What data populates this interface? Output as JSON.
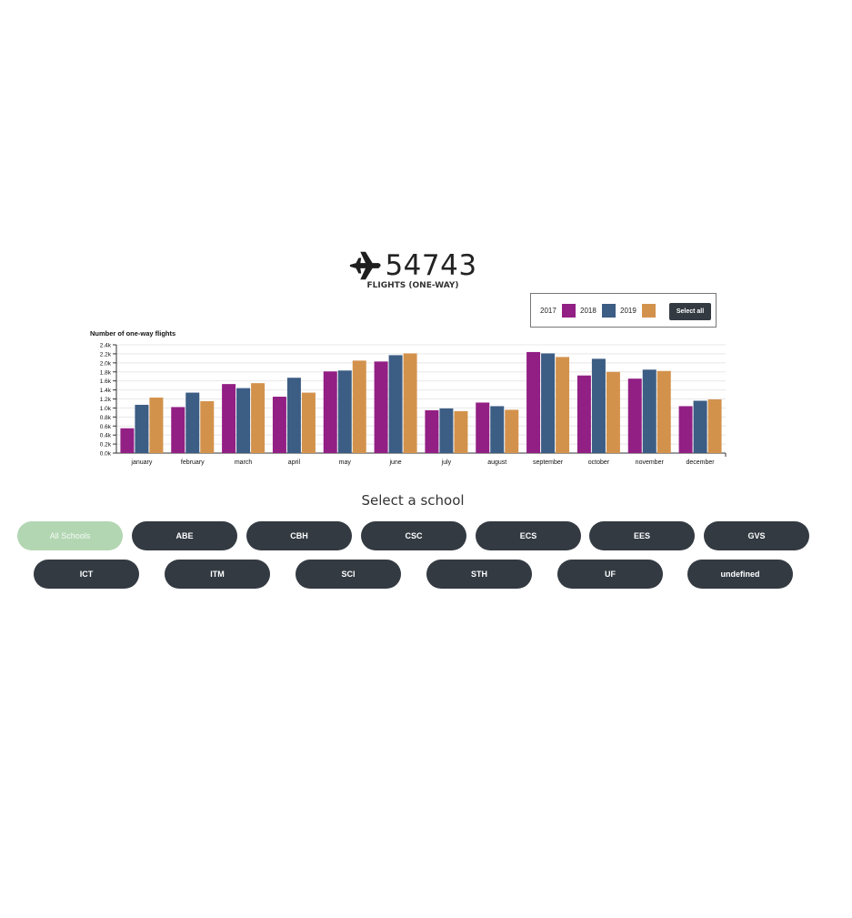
{
  "kpi": {
    "icon": "airplane-icon",
    "value": "54743",
    "label": "FLIGHTS (ONE-WAY)"
  },
  "legend": {
    "items": [
      {
        "label": "2017",
        "color": "#921f84"
      },
      {
        "label": "2018",
        "color": "#3c5d84"
      },
      {
        "label": "2019",
        "color": "#d3924c"
      }
    ],
    "select_all_label": "Select all"
  },
  "chart_data": {
    "type": "bar",
    "title": "Number of one-way flights",
    "xlabel": "",
    "ylabel": "Number of one-way flights",
    "ylim": [
      0,
      2400
    ],
    "grid": true,
    "y_ticks": [
      "0.0k",
      "0.2k",
      "0.4k",
      "0.6k",
      "0.8k",
      "1.0k",
      "1.2k",
      "1.4k",
      "1.6k",
      "1.8k",
      "2.0k",
      "2.2k",
      "2.4k"
    ],
    "categories": [
      "january",
      "february",
      "march",
      "april",
      "may",
      "june",
      "july",
      "august",
      "september",
      "october",
      "november",
      "december"
    ],
    "series": [
      {
        "name": "2017",
        "color": "#921f84",
        "values": [
          550,
          1020,
          1530,
          1250,
          1810,
          2030,
          950,
          1120,
          2240,
          1720,
          1650,
          1040
        ]
      },
      {
        "name": "2018",
        "color": "#3c5d84",
        "values": [
          1070,
          1340,
          1440,
          1670,
          1830,
          2170,
          990,
          1040,
          2210,
          2090,
          1850,
          1160
        ]
      },
      {
        "name": "2019",
        "color": "#d3924c",
        "values": [
          1230,
          1150,
          1550,
          1340,
          2050,
          2210,
          930,
          960,
          2130,
          1800,
          1820,
          1190
        ]
      }
    ]
  },
  "schools": {
    "title": "Select a school",
    "buttons": [
      "All Schools",
      "ABE",
      "CBH",
      "CSC",
      "ECS",
      "EES",
      "GVS",
      "ICT",
      "ITM",
      "SCI",
      "STH",
      "UF",
      "undefined"
    ],
    "active": "All Schools"
  }
}
